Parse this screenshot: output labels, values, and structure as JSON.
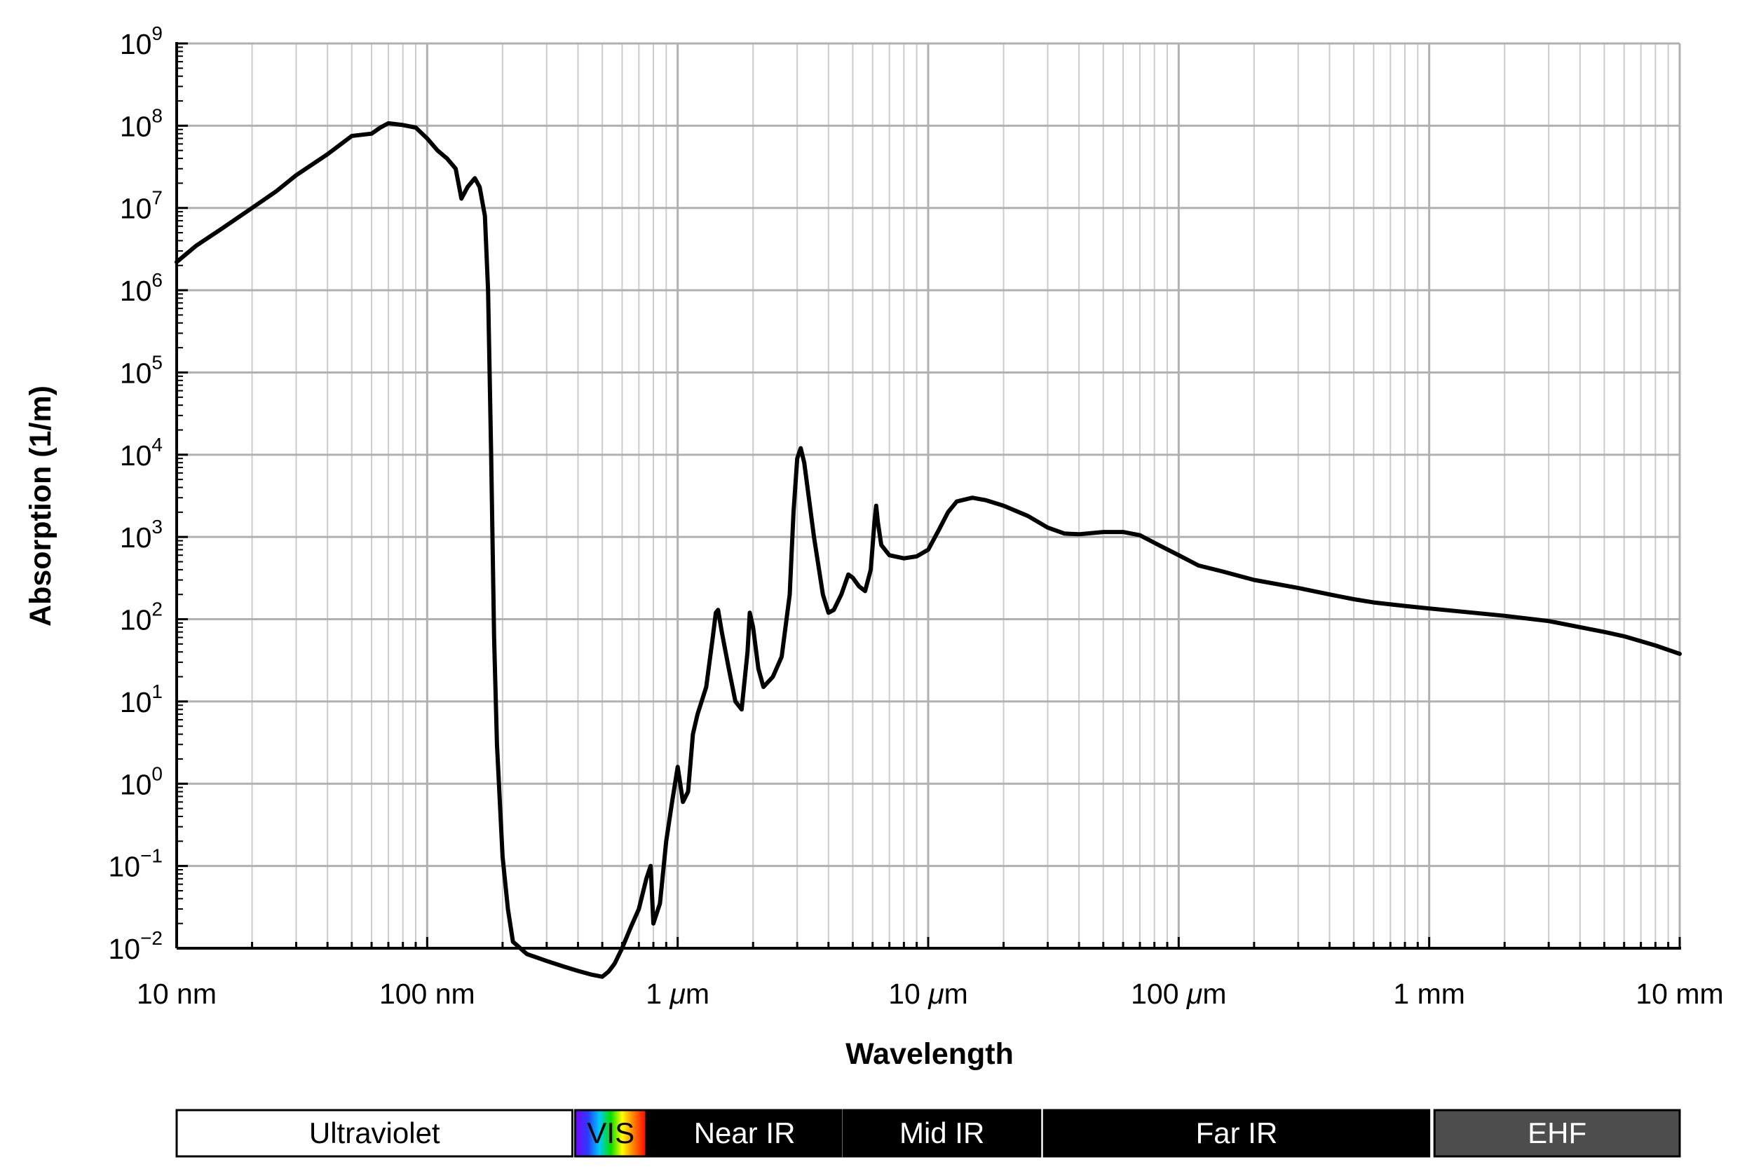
{
  "chart_data": {
    "type": "line",
    "title": "",
    "xlabel": "Wavelength",
    "ylabel": "Absorption (1/m)",
    "x_unit": "m",
    "y_unit": "1/m",
    "x_scale": "log",
    "y_scale": "log",
    "xlim": [
      1e-08,
      0.01
    ],
    "ylim": [
      0.01,
      1000000000.0
    ],
    "grid": true,
    "x_ticks": [
      {
        "value": 1e-08,
        "label": "10 nm"
      },
      {
        "value": 1e-07,
        "label": "100 nm"
      },
      {
        "value": 1e-06,
        "prefix": "1 ",
        "unit": "m",
        "label": "1 μm"
      },
      {
        "value": 1e-05,
        "prefix": "10 ",
        "unit": "m",
        "label": "10 μm"
      },
      {
        "value": 0.0001,
        "prefix": "100 ",
        "unit": "m",
        "label": "100 μm"
      },
      {
        "value": 0.001,
        "label": "1 mm"
      },
      {
        "value": 0.01,
        "label": "10 mm"
      }
    ],
    "y_ticks": [
      {
        "value": 1000000000.0,
        "base": "10",
        "exp": "9"
      },
      {
        "value": 100000000.0,
        "base": "10",
        "exp": "8"
      },
      {
        "value": 10000000.0,
        "base": "10",
        "exp": "7"
      },
      {
        "value": 1000000.0,
        "base": "10",
        "exp": "6"
      },
      {
        "value": 100000.0,
        "base": "10",
        "exp": "5"
      },
      {
        "value": 10000.0,
        "base": "10",
        "exp": "4"
      },
      {
        "value": 1000.0,
        "base": "10",
        "exp": "3"
      },
      {
        "value": 100.0,
        "base": "10",
        "exp": "2"
      },
      {
        "value": 10.0,
        "base": "10",
        "exp": "1"
      },
      {
        "value": 1.0,
        "base": "10",
        "exp": "0"
      },
      {
        "value": 0.1,
        "base": "10",
        "exp": "−1"
      },
      {
        "value": 0.01,
        "base": "10",
        "exp": "−2"
      }
    ],
    "series": [
      {
        "color": "#000000",
        "points": [
          [
            1e-08,
            2200000.0
          ],
          [
            1.2e-08,
            3500000.0
          ],
          [
            1.5e-08,
            5500000.0
          ],
          [
            2e-08,
            10000000.0
          ],
          [
            2.5e-08,
            16000000.0
          ],
          [
            3e-08,
            25000000.0
          ],
          [
            4e-08,
            45000000.0
          ],
          [
            5e-08,
            75000000.0
          ],
          [
            6e-08,
            80000000.0
          ],
          [
            6.5e-08,
            95000000.0
          ],
          [
            7e-08,
            107000000.0
          ],
          [
            8e-08,
            102000000.0
          ],
          [
            9e-08,
            95000000.0
          ],
          [
            1e-07,
            70000000.0
          ],
          [
            1.1e-07,
            50000000.0
          ],
          [
            1.2e-07,
            40000000.0
          ],
          [
            1.3e-07,
            30000000.0
          ],
          [
            1.37e-07,
            13000000.0
          ],
          [
            1.45e-07,
            18000000.0
          ],
          [
            1.55e-07,
            23000000.0
          ],
          [
            1.62e-07,
            18000000.0
          ],
          [
            1.7e-07,
            8000000.0
          ],
          [
            1.75e-07,
            1000000.0
          ],
          [
            1.8e-07,
            10000.0
          ],
          [
            1.85e-07,
            60
          ],
          [
            1.9e-07,
            3.0
          ],
          [
            2e-07,
            0.13
          ],
          [
            2.1e-07,
            0.03
          ],
          [
            2.2e-07,
            0.012
          ],
          [
            2.5e-07,
            0.0085
          ],
          [
            3e-07,
            0.007
          ],
          [
            3.5e-07,
            0.006
          ],
          [
            4e-07,
            0.0053
          ],
          [
            4.5e-07,
            0.0048
          ],
          [
            5e-07,
            0.0045
          ],
          [
            5.3e-07,
            0.0052
          ],
          [
            5.6e-07,
            0.0065
          ],
          [
            6e-07,
            0.01
          ],
          [
            6.5e-07,
            0.018
          ],
          [
            7e-07,
            0.03
          ],
          [
            7.5e-07,
            0.07
          ],
          [
            7.8e-07,
            0.1
          ],
          [
            8e-07,
            0.02
          ],
          [
            8.5e-07,
            0.035
          ],
          [
            9e-07,
            0.2
          ],
          [
            9.5e-07,
            0.6
          ],
          [
            1e-06,
            1.6
          ],
          [
            1.05e-06,
            0.6
          ],
          [
            1.1e-06,
            0.8
          ],
          [
            1.15e-06,
            4.0
          ],
          [
            1.2e-06,
            7.0
          ],
          [
            1.3e-06,
            15
          ],
          [
            1.38e-06,
            60
          ],
          [
            1.42e-06,
            120
          ],
          [
            1.45e-06,
            130
          ],
          [
            1.5e-06,
            70
          ],
          [
            1.6e-06,
            25
          ],
          [
            1.7e-06,
            10
          ],
          [
            1.8e-06,
            8
          ],
          [
            1.9e-06,
            40
          ],
          [
            1.94e-06,
            120
          ],
          [
            2e-06,
            80
          ],
          [
            2.1e-06,
            25
          ],
          [
            2.2e-06,
            15
          ],
          [
            2.4e-06,
            20
          ],
          [
            2.6e-06,
            35
          ],
          [
            2.8e-06,
            200
          ],
          [
            2.9e-06,
            2000
          ],
          [
            3e-06,
            9000
          ],
          [
            3.1e-06,
            12000
          ],
          [
            3.2e-06,
            8000
          ],
          [
            3.5e-06,
            1000
          ],
          [
            3.8e-06,
            200
          ],
          [
            4e-06,
            120
          ],
          [
            4.2e-06,
            130
          ],
          [
            4.5e-06,
            200
          ],
          [
            4.8e-06,
            350
          ],
          [
            5e-06,
            320
          ],
          [
            5.3e-06,
            250
          ],
          [
            5.6e-06,
            220
          ],
          [
            5.9e-06,
            400
          ],
          [
            6.1e-06,
            1500
          ],
          [
            6.2e-06,
            2400
          ],
          [
            6.3e-06,
            1500
          ],
          [
            6.5e-06,
            800
          ],
          [
            7e-06,
            600
          ],
          [
            8e-06,
            550
          ],
          [
            9e-06,
            580
          ],
          [
            1e-05,
            700
          ],
          [
            1.1e-05,
            1200
          ],
          [
            1.2e-05,
            2000
          ],
          [
            1.3e-05,
            2700
          ],
          [
            1.5e-05,
            3000
          ],
          [
            1.7e-05,
            2800
          ],
          [
            2e-05,
            2400
          ],
          [
            2.5e-05,
            1800
          ],
          [
            3e-05,
            1300
          ],
          [
            3.5e-05,
            1100
          ],
          [
            4e-05,
            1080
          ],
          [
            5e-05,
            1150
          ],
          [
            6e-05,
            1150
          ],
          [
            7e-05,
            1050
          ],
          [
            8e-05,
            850
          ],
          [
            0.0001,
            600
          ],
          [
            0.00012,
            450
          ],
          [
            0.00015,
            380
          ],
          [
            0.0002,
            300
          ],
          [
            0.0003,
            240
          ],
          [
            0.0004,
            200
          ],
          [
            0.0005,
            175
          ],
          [
            0.0006,
            160
          ],
          [
            0.0008,
            145
          ],
          [
            0.001,
            135
          ],
          [
            0.0015,
            120
          ],
          [
            0.002,
            110
          ],
          [
            0.003,
            95
          ],
          [
            0.004,
            80
          ],
          [
            0.005,
            70
          ],
          [
            0.006,
            62
          ],
          [
            0.008,
            48
          ],
          [
            0.01,
            38
          ]
        ]
      }
    ],
    "spectrum_bands": [
      {
        "label": "Ultraviolet",
        "start": 1e-08,
        "end": 3.8e-07,
        "fill": "#ffffff",
        "text_color": "#000000"
      },
      {
        "label": "VIS",
        "start": 3.9e-07,
        "end": 7.5e-07,
        "fill": "rainbow",
        "text_color": "#000000"
      },
      {
        "label": "Near IR",
        "start": 7.6e-07,
        "end": 4.5e-06,
        "fill": "#000000",
        "text_color": "#ffffff"
      },
      {
        "label": "Mid IR",
        "start": 4.6e-06,
        "end": 2.8e-05,
        "fill": "#000000",
        "text_color": "#ffffff"
      },
      {
        "label": "Far IR",
        "start": 2.9e-05,
        "end": 0.001,
        "fill": "#000000",
        "text_color": "#ffffff"
      },
      {
        "label": "EHF",
        "start": 0.00105,
        "end": 0.01,
        "fill": "#4d4d4d",
        "text_color": "#ffffff"
      }
    ]
  }
}
